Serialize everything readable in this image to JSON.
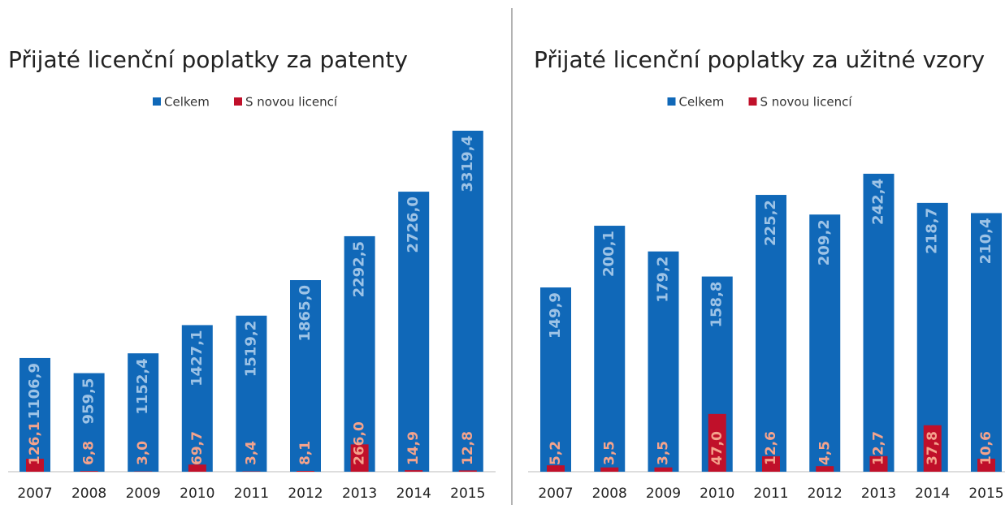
{
  "chart_data": [
    {
      "type": "bar",
      "title": "Přijaté licenční poplatky za patenty",
      "categories": [
        "2007",
        "2008",
        "2009",
        "2010",
        "2011",
        "2012",
        "2013",
        "2014",
        "2015"
      ],
      "series": [
        {
          "name": "Celkem",
          "color": "#1068b8",
          "values": [
            1106.9,
            959.5,
            1152.4,
            1427.1,
            1519.2,
            1865.0,
            2292.5,
            2726.0,
            3319.4
          ],
          "value_labels": [
            "1106,9",
            "959,5",
            "1152,4",
            "1427,1",
            "1519,2",
            "1865,0",
            "2292,5",
            "2726,0",
            "3319,4"
          ]
        },
        {
          "name": "S novou licencí",
          "color": "#c0102a",
          "values": [
            126.1,
            6.8,
            3.0,
            69.7,
            3.4,
            8.1,
            266.0,
            14.9,
            12.8
          ],
          "value_labels": [
            "126,1",
            "6,8",
            "3,0",
            "69,7",
            "3,4",
            "8,1",
            "266,0",
            "14,9",
            "12,8"
          ]
        }
      ],
      "ylim": [
        0,
        3500
      ]
    },
    {
      "type": "bar",
      "title": "Přijaté licenční poplatky za užitné vzory",
      "categories": [
        "2007",
        "2008",
        "2009",
        "2010",
        "2011",
        "2012",
        "2013",
        "2014",
        "2015"
      ],
      "series": [
        {
          "name": "Celkem",
          "color": "#1068b8",
          "values": [
            149.9,
            200.1,
            179.2,
            158.8,
            225.2,
            209.2,
            242.4,
            218.7,
            210.4
          ],
          "value_labels": [
            "149,9",
            "200,1",
            "179,2",
            "158,8",
            "225,2",
            "209,2",
            "242,4",
            "218,7",
            "210,4"
          ]
        },
        {
          "name": "S novou licencí",
          "color": "#c0102a",
          "values": [
            5.2,
            3.5,
            3.5,
            47.0,
            12.6,
            4.5,
            12.7,
            37.8,
            10.6
          ],
          "value_labels": [
            "5,2",
            "3,5",
            "3,5",
            "47,0",
            "12,6",
            "4,5",
            "12,7",
            "37,8",
            "10,6"
          ]
        }
      ],
      "ylim": [
        0,
        250
      ]
    }
  ]
}
